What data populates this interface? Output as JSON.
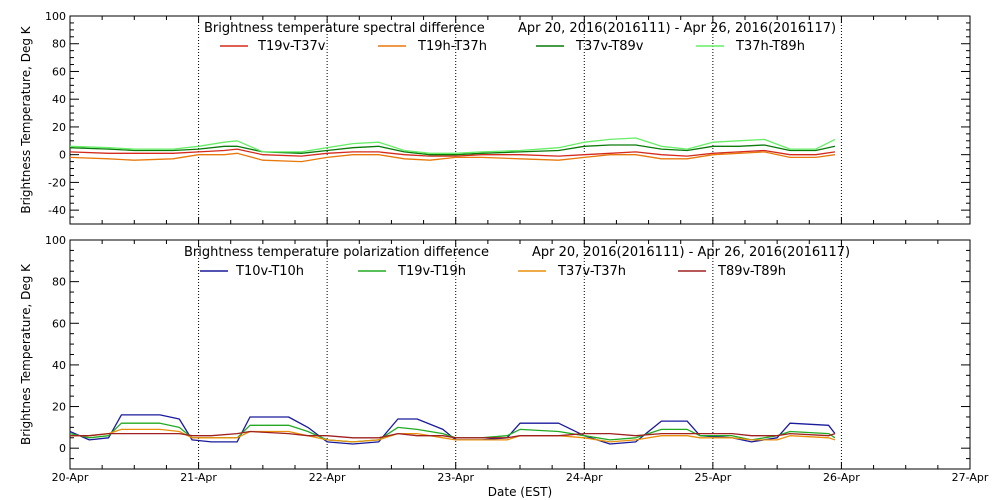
{
  "xlabel": "Date (EST)",
  "x_ticks": [
    "20-Apr",
    "21-Apr",
    "22-Apr",
    "23-Apr",
    "24-Apr",
    "25-Apr",
    "26-Apr",
    "27-Apr"
  ],
  "chart_data": [
    {
      "type": "line",
      "title": "Brightness temperature spectral difference",
      "date_range": "Apr 20, 2016(2016111) - Apr 26, 2016(2016117)",
      "ylabel": "Brightness Temperature, Deg K",
      "xlim": [
        0,
        7
      ],
      "ylim": [
        -50,
        100
      ],
      "y_ticks": [
        "-40",
        "-20",
        "0",
        "20",
        "40",
        "60",
        "80",
        "100"
      ],
      "grid": "vertical dotted lines at each day",
      "legend_position": "top",
      "series": [
        {
          "name": "T19v-T37v",
          "color": "#d42a1c",
          "x": [
            0,
            0.3,
            0.5,
            0.8,
            1.0,
            1.2,
            1.3,
            1.5,
            1.8,
            2.0,
            2.2,
            2.4,
            2.6,
            2.8,
            3.0,
            3.2,
            3.5,
            3.8,
            4.0,
            4.2,
            4.4,
            4.6,
            4.8,
            5.0,
            5.2,
            5.4,
            5.6,
            5.8,
            5.95
          ],
          "y": [
            2,
            1,
            1,
            1,
            2,
            3,
            4,
            0,
            -1,
            1,
            2,
            2,
            0,
            -1,
            -1,
            0,
            0,
            -1,
            0,
            1,
            2,
            0,
            -1,
            1,
            2,
            3,
            0,
            0,
            2
          ]
        },
        {
          "name": "T19h-T37h",
          "color": "#e8780c",
          "x": [
            0,
            0.3,
            0.5,
            0.8,
            1.0,
            1.2,
            1.3,
            1.5,
            1.8,
            2.0,
            2.2,
            2.4,
            2.6,
            2.8,
            3.0,
            3.2,
            3.5,
            3.8,
            4.0,
            4.2,
            4.4,
            4.6,
            4.8,
            5.0,
            5.2,
            5.4,
            5.6,
            5.8,
            5.95
          ],
          "y": [
            -2,
            -3,
            -4,
            -3,
            0,
            0,
            1,
            -4,
            -5,
            -2,
            0,
            0,
            -3,
            -4,
            -2,
            -2,
            -3,
            -4,
            -2,
            0,
            0,
            -3,
            -3,
            0,
            1,
            2,
            -2,
            -2,
            0
          ]
        },
        {
          "name": "T37v-T89v",
          "color": "#0a7a0a",
          "x": [
            0,
            0.3,
            0.5,
            0.8,
            1.0,
            1.2,
            1.3,
            1.5,
            1.8,
            2.0,
            2.2,
            2.4,
            2.6,
            2.8,
            3.0,
            3.2,
            3.5,
            3.8,
            4.0,
            4.2,
            4.4,
            4.6,
            4.8,
            5.0,
            5.2,
            5.4,
            5.6,
            5.8,
            5.95
          ],
          "y": [
            5,
            4,
            3,
            3,
            4,
            6,
            6,
            2,
            1,
            3,
            5,
            6,
            2,
            0,
            0,
            1,
            2,
            3,
            6,
            7,
            7,
            4,
            3,
            6,
            6,
            7,
            3,
            3,
            6
          ]
        },
        {
          "name": "T37h-T89h",
          "color": "#66ee66",
          "x": [
            0,
            0.3,
            0.5,
            0.8,
            1.0,
            1.2,
            1.3,
            1.5,
            1.8,
            2.0,
            2.2,
            2.4,
            2.6,
            2.8,
            3.0,
            3.2,
            3.5,
            3.8,
            4.0,
            4.2,
            4.4,
            4.6,
            4.8,
            5.0,
            5.2,
            5.4,
            5.6,
            5.8,
            5.95
          ],
          "y": [
            6,
            5,
            4,
            4,
            6,
            9,
            10,
            2,
            2,
            5,
            8,
            9,
            3,
            1,
            1,
            2,
            3,
            5,
            9,
            11,
            12,
            6,
            4,
            9,
            10,
            11,
            4,
            4,
            11
          ]
        }
      ]
    },
    {
      "type": "line",
      "title": "Brightness temperature polarization difference",
      "date_range": "Apr 20, 2016(2016111) - Apr 26, 2016(2016117)",
      "ylabel": "Brightnes Temperature, Deg K",
      "xlim": [
        0,
        7
      ],
      "ylim": [
        -10,
        100
      ],
      "y_ticks": [
        "0",
        "20",
        "40",
        "60",
        "80",
        "100"
      ],
      "grid": "vertical dotted lines at each day",
      "legend_position": "top",
      "series": [
        {
          "name": "T10v-T10h",
          "color": "#1a1a9c",
          "x": [
            0,
            0.15,
            0.3,
            0.4,
            0.7,
            0.85,
            0.95,
            1.1,
            1.3,
            1.4,
            1.7,
            1.85,
            2.0,
            2.2,
            2.4,
            2.55,
            2.7,
            2.9,
            3.0,
            3.2,
            3.4,
            3.5,
            3.8,
            4.0,
            4.2,
            4.4,
            4.6,
            4.8,
            4.9,
            5.15,
            5.3,
            5.5,
            5.6,
            5.9,
            5.95
          ],
          "y": [
            8,
            4,
            5,
            16,
            16,
            14,
            4,
            3,
            3,
            15,
            15,
            10,
            3,
            2,
            3,
            14,
            14,
            9,
            4,
            4,
            5,
            12,
            12,
            6,
            2,
            3,
            13,
            13,
            6,
            5,
            3,
            5,
            12,
            11,
            7
          ]
        },
        {
          "name": "T19v-T19h",
          "color": "#22aa22",
          "x": [
            0,
            0.15,
            0.3,
            0.4,
            0.7,
            0.85,
            0.95,
            1.1,
            1.3,
            1.4,
            1.7,
            1.85,
            2.0,
            2.2,
            2.4,
            2.55,
            2.7,
            2.9,
            3.0,
            3.2,
            3.4,
            3.5,
            3.8,
            4.0,
            4.2,
            4.4,
            4.6,
            4.8,
            4.9,
            5.15,
            5.3,
            5.5,
            5.6,
            5.9,
            5.95
          ],
          "y": [
            7,
            5,
            6,
            12,
            12,
            10,
            5,
            5,
            5,
            11,
            11,
            8,
            4,
            3,
            4,
            10,
            9,
            7,
            5,
            5,
            6,
            9,
            8,
            6,
            4,
            5,
            9,
            9,
            6,
            6,
            4,
            6,
            8,
            7,
            5
          ]
        },
        {
          "name": "T37v-T37h",
          "color": "#e8900c",
          "x": [
            0,
            0.15,
            0.3,
            0.4,
            0.7,
            0.85,
            0.95,
            1.1,
            1.3,
            1.4,
            1.7,
            1.85,
            2.0,
            2.2,
            2.4,
            2.55,
            2.7,
            2.9,
            3.0,
            3.2,
            3.4,
            3.5,
            3.8,
            4.0,
            4.2,
            4.4,
            4.6,
            4.8,
            4.9,
            5.15,
            5.3,
            5.5,
            5.6,
            5.9,
            5.95
          ],
          "y": [
            6,
            6,
            7,
            9,
            9,
            8,
            5,
            5,
            5,
            8,
            8,
            6,
            4,
            3,
            4,
            7,
            7,
            5,
            4,
            4,
            4,
            6,
            6,
            5,
            3,
            4,
            6,
            6,
            5,
            5,
            4,
            4,
            6,
            5,
            4
          ]
        },
        {
          "name": "T89v-T89h",
          "color": "#a02020",
          "x": [
            0,
            0.15,
            0.3,
            0.4,
            0.7,
            0.85,
            0.95,
            1.1,
            1.3,
            1.4,
            1.7,
            1.85,
            2.0,
            2.2,
            2.4,
            2.55,
            2.7,
            2.9,
            3.0,
            3.2,
            3.4,
            3.5,
            3.8,
            4.0,
            4.2,
            4.4,
            4.6,
            4.8,
            4.9,
            5.15,
            5.3,
            5.5,
            5.6,
            5.9,
            5.95
          ],
          "y": [
            6,
            6,
            7,
            7,
            7,
            7,
            6,
            6,
            7,
            8,
            7,
            6,
            6,
            5,
            5,
            7,
            6,
            6,
            5,
            5,
            5,
            6,
            6,
            7,
            7,
            6,
            7,
            7,
            7,
            7,
            6,
            6,
            7,
            6,
            7
          ]
        }
      ]
    }
  ]
}
